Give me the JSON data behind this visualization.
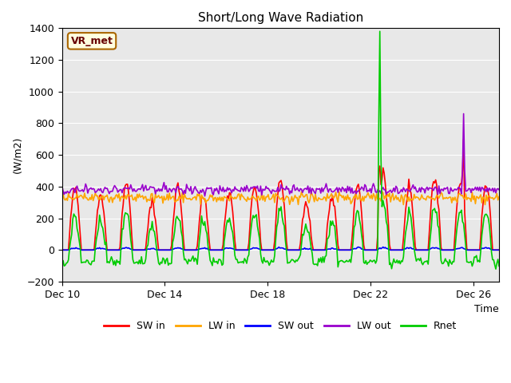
{
  "title": "Short/Long Wave Radiation",
  "xlabel": "Time",
  "ylabel": "(W/m2)",
  "ylim": [
    -200,
    1400
  ],
  "yticks": [
    -200,
    0,
    200,
    400,
    600,
    800,
    1000,
    1200,
    1400
  ],
  "xlim_days": [
    0,
    17
  ],
  "x_tick_positions": [
    0,
    4,
    8,
    12,
    16
  ],
  "x_tick_labels": [
    "Dec 10",
    "Dec 14",
    "Dec 18",
    "Dec 22",
    "Dec 26"
  ],
  "legend_labels": [
    "SW in",
    "LW in",
    "SW out",
    "LW out",
    "Rnet"
  ],
  "colors": {
    "SW_in": "#ff0000",
    "LW_in": "#ffa500",
    "SW_out": "#0000ff",
    "LW_out": "#9900cc",
    "Rnet": "#00cc00"
  },
  "bg_color": "#e8e8e8",
  "station_label": "VR_met",
  "line_width": 1.2
}
